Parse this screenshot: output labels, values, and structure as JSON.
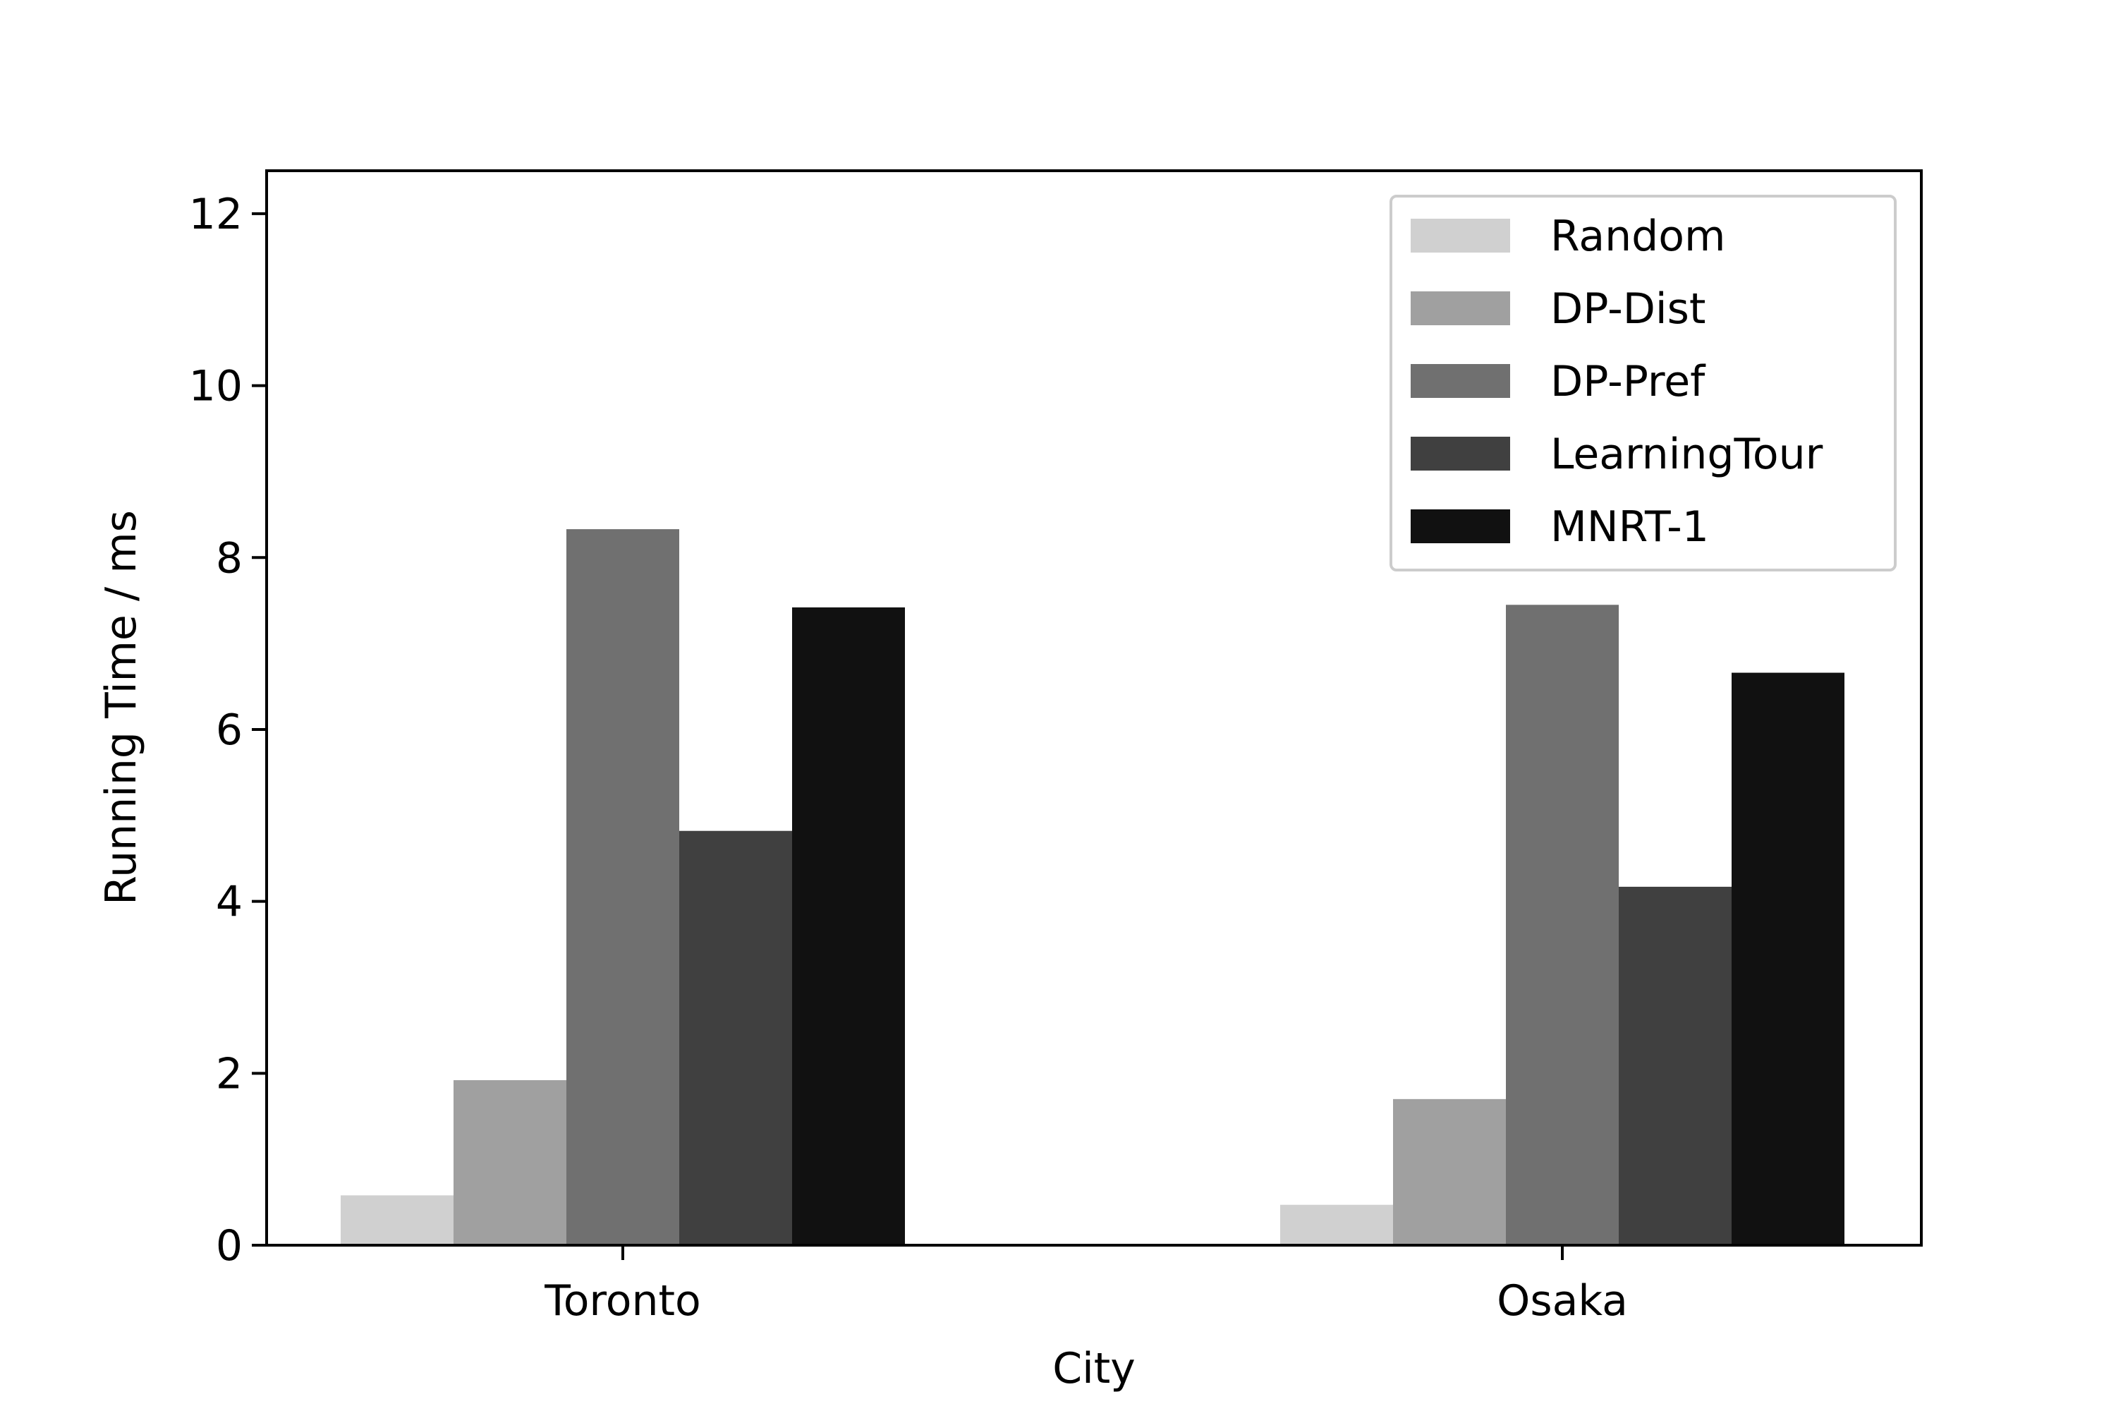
{
  "chart_data": {
    "type": "bar",
    "title": "",
    "xlabel": "City",
    "ylabel": "Running Time / ms",
    "categories": [
      "Toronto",
      "Osaka"
    ],
    "ylim": [
      0,
      12.5
    ],
    "yticks": [
      0,
      2,
      4,
      6,
      8,
      10,
      12
    ],
    "grid": false,
    "legend_position": "top-right",
    "series": [
      {
        "name": "Random",
        "color": "#d0d0d0",
        "values": [
          0.58,
          0.47
        ]
      },
      {
        "name": "DP-Dist",
        "color": "#a0a0a0",
        "values": [
          1.92,
          1.7
        ]
      },
      {
        "name": "DP-Pref",
        "color": "#707070",
        "values": [
          8.33,
          7.45
        ]
      },
      {
        "name": "LearningTour",
        "color": "#404040",
        "values": [
          4.82,
          4.17
        ]
      },
      {
        "name": "MNRT-1",
        "color": "#111111",
        "values": [
          7.42,
          6.66
        ]
      }
    ]
  }
}
